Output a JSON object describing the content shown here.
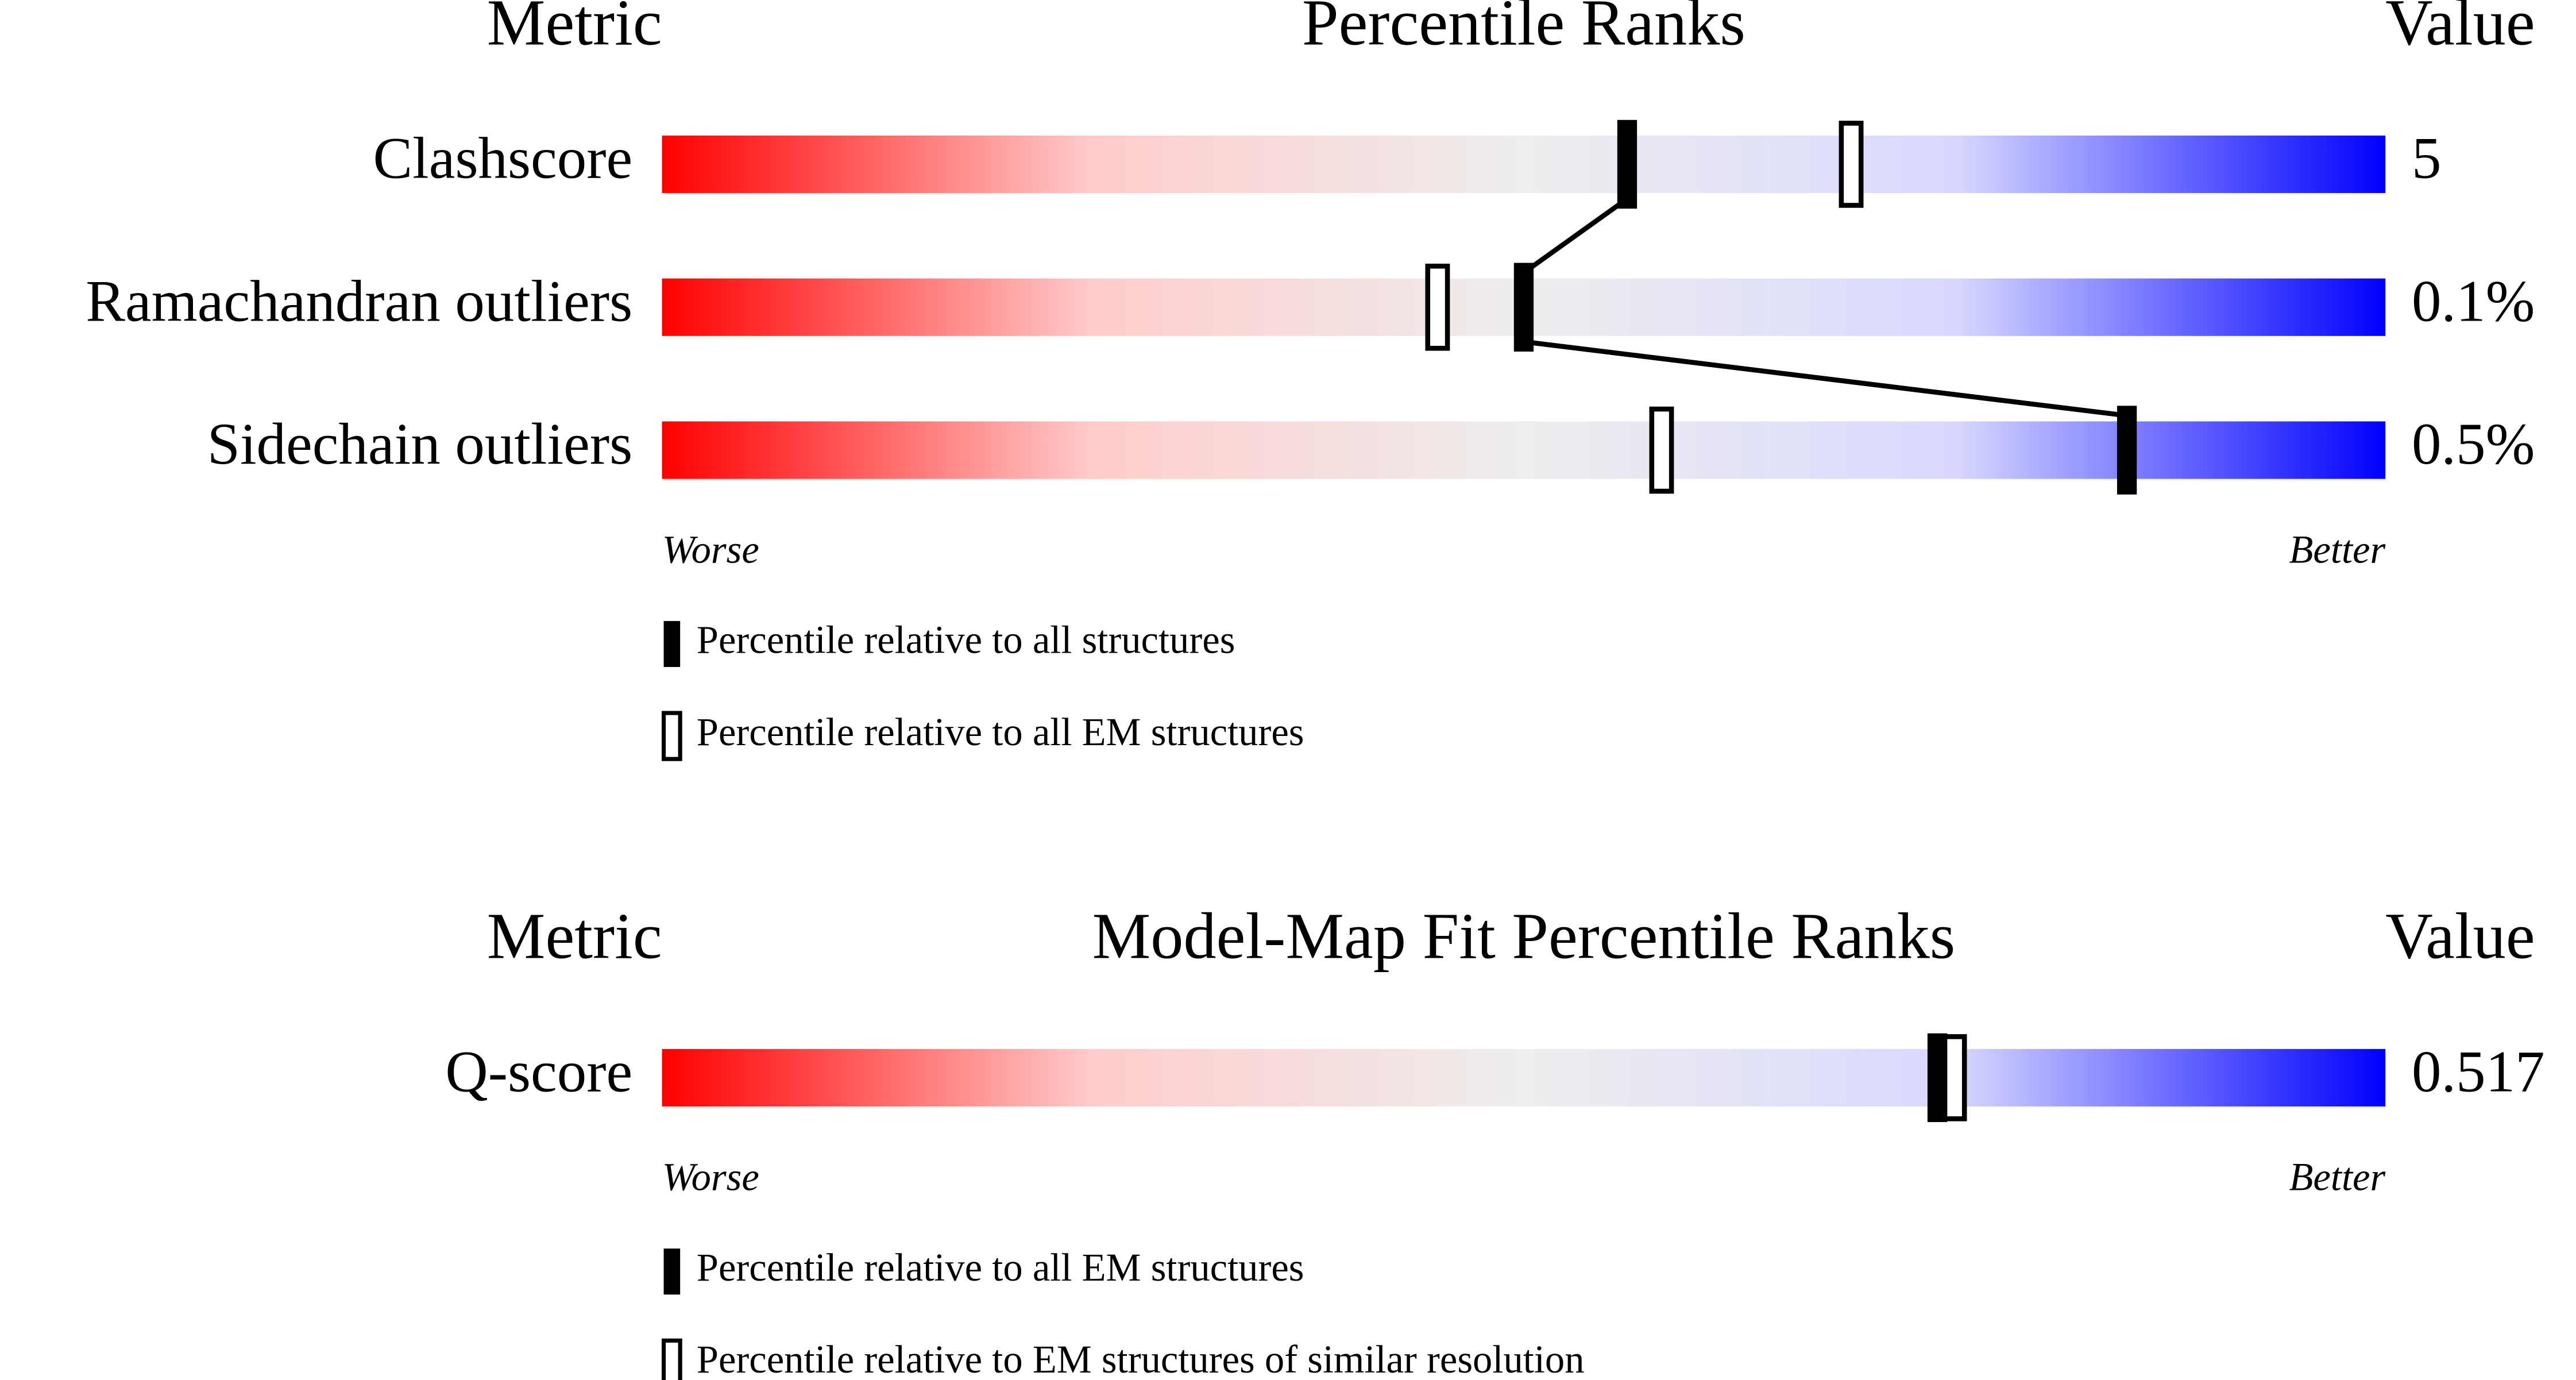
{
  "chart_data": [
    {
      "type": "percentile",
      "metric_header": "Metric",
      "title": "Percentile Ranks",
      "value_header": "Value",
      "categories": [
        "Clashscore",
        "Ramachandran outliers",
        "Sidechain outliers"
      ],
      "metric_values": [
        "5",
        "0.1%",
        "0.5%"
      ],
      "series": [
        {
          "name": "Percentile relative to all structures",
          "style": "filled",
          "color": "#000000",
          "values": [
            56,
            50,
            85
          ]
        },
        {
          "name": "Percentile relative to all EM structures",
          "style": "open",
          "color": "#000000",
          "values": [
            69,
            45,
            58
          ]
        }
      ],
      "xlim": [
        0,
        100
      ],
      "low_label": "Worse",
      "high_label": "Better",
      "gradient": [
        "#ff0000",
        "#ffcccc",
        "#eeeeee",
        "#d8d8ff",
        "#0000ff"
      ]
    },
    {
      "type": "percentile",
      "metric_header": "Metric",
      "title": "Model-Map Fit Percentile Ranks",
      "value_header": "Value",
      "categories": [
        "Q-score"
      ],
      "metric_values": [
        "0.517"
      ],
      "series": [
        {
          "name": "Percentile relative to all EM structures",
          "style": "filled",
          "color": "#000000",
          "values": [
            74
          ]
        },
        {
          "name": "Percentile relative to EM structures of similar resolution",
          "style": "open",
          "color": "#000000",
          "values": [
            75
          ]
        }
      ],
      "xlim": [
        0,
        100
      ],
      "low_label": "Worse",
      "high_label": "Better",
      "gradient": [
        "#ff0000",
        "#ffcccc",
        "#eeeeee",
        "#d8d8ff",
        "#0000ff"
      ]
    }
  ]
}
